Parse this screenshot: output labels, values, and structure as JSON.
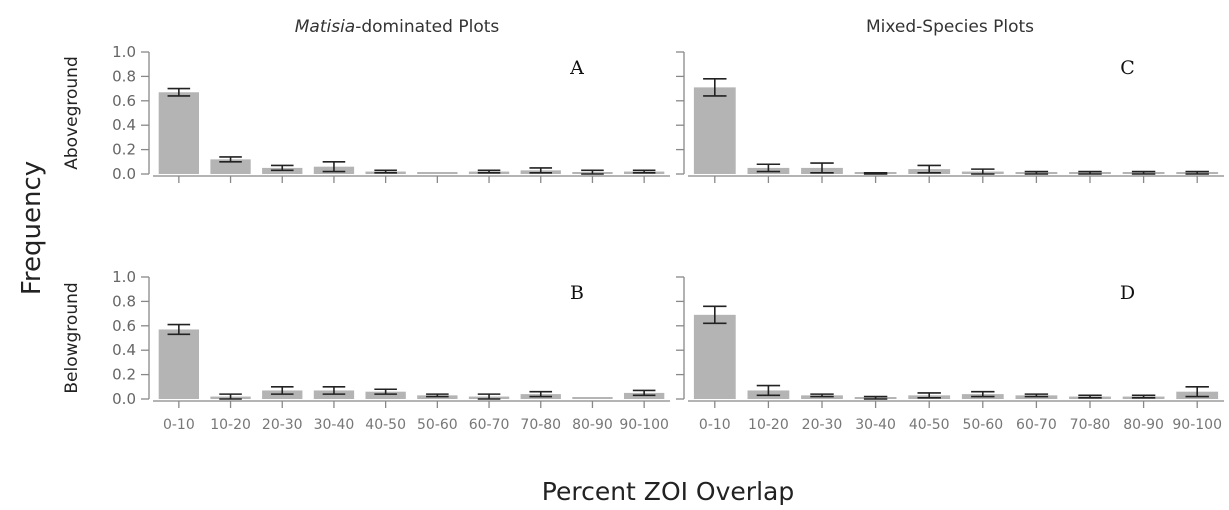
{
  "figure": {
    "column_titles": [
      {
        "italic": "Matisia",
        "rest": "-dominated Plots"
      },
      {
        "italic": "",
        "rest": "Mixed-Species Plots"
      }
    ],
    "row_labels": [
      "Aboveground",
      "Belowground"
    ],
    "y_title": "Frequency",
    "x_title": "Percent ZOI Overlap",
    "bar_color": "#b4b4b4"
  },
  "chart_data": [
    {
      "type": "bar",
      "panel": "A",
      "categories": [
        "0-10",
        "10-20",
        "20-30",
        "30-40",
        "40-50",
        "50-60",
        "60-70",
        "70-80",
        "80-90",
        "90-100"
      ],
      "values": [
        0.67,
        0.12,
        0.05,
        0.06,
        0.02,
        0.0,
        0.02,
        0.03,
        0.01,
        0.02
      ],
      "errors": [
        0.03,
        0.02,
        0.02,
        0.04,
        0.01,
        0.0,
        0.01,
        0.02,
        0.02,
        0.01
      ],
      "ylim": [
        0,
        1.0
      ],
      "yticks": [
        "0.0",
        "0.2",
        "0.4",
        "0.6",
        "0.8",
        "1.0"
      ],
      "show_ytick_labels": true,
      "show_category_labels": false
    },
    {
      "type": "bar",
      "panel": "C",
      "categories": [
        "0-10",
        "10-20",
        "20-30",
        "30-40",
        "40-50",
        "50-60",
        "60-70",
        "70-80",
        "80-90",
        "90-100"
      ],
      "values": [
        0.71,
        0.05,
        0.05,
        0.0,
        0.04,
        0.02,
        0.01,
        0.01,
        0.01,
        0.01
      ],
      "errors": [
        0.07,
        0.03,
        0.04,
        0.01,
        0.03,
        0.02,
        0.01,
        0.01,
        0.01,
        0.01
      ],
      "ylim": [
        0,
        1.0
      ],
      "yticks": [
        "",
        "",
        "",
        "",
        "",
        ""
      ],
      "show_ytick_labels": false,
      "show_category_labels": false
    },
    {
      "type": "bar",
      "panel": "B",
      "categories": [
        "0-10",
        "10-20",
        "20-30",
        "30-40",
        "40-50",
        "50-60",
        "60-70",
        "70-80",
        "80-90",
        "90-100"
      ],
      "values": [
        0.57,
        0.02,
        0.07,
        0.07,
        0.06,
        0.03,
        0.02,
        0.04,
        0.0,
        0.05
      ],
      "errors": [
        0.04,
        0.02,
        0.03,
        0.03,
        0.02,
        0.01,
        0.02,
        0.02,
        0.0,
        0.02
      ],
      "ylim": [
        0,
        1.0
      ],
      "yticks": [
        "0.0",
        "0.2",
        "0.4",
        "0.6",
        "0.8",
        "1.0"
      ],
      "show_ytick_labels": true,
      "show_category_labels": true
    },
    {
      "type": "bar",
      "panel": "D",
      "categories": [
        "0-10",
        "10-20",
        "20-30",
        "30-40",
        "40-50",
        "50-60",
        "60-70",
        "70-80",
        "80-90",
        "90-100"
      ],
      "values": [
        0.69,
        0.07,
        0.03,
        0.01,
        0.03,
        0.04,
        0.03,
        0.02,
        0.02,
        0.06
      ],
      "errors": [
        0.07,
        0.04,
        0.01,
        0.01,
        0.02,
        0.02,
        0.01,
        0.01,
        0.01,
        0.04
      ],
      "ylim": [
        0,
        1.0
      ],
      "yticks": [
        "",
        "",
        "",
        "",
        "",
        ""
      ],
      "show_ytick_labels": false,
      "show_category_labels": true
    }
  ]
}
